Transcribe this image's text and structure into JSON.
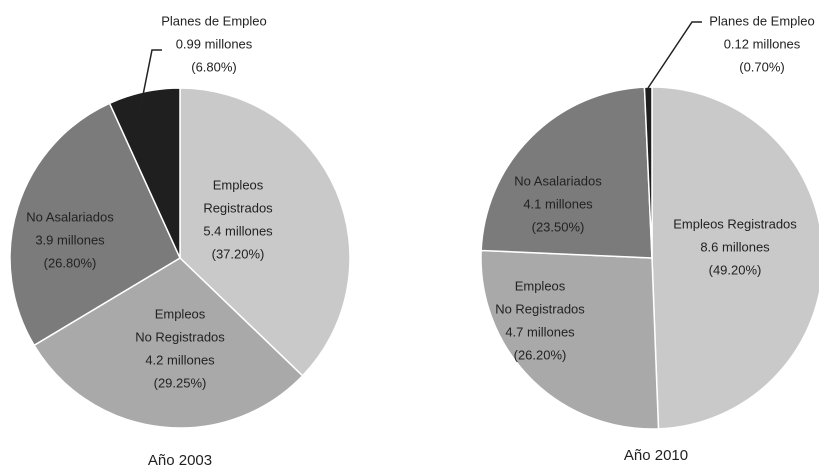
{
  "chart_data": [
    {
      "type": "pie",
      "title": "Año 2003",
      "categories": [
        [
          "Empleos",
          "Registrados"
        ],
        [
          "Empleos",
          "No Registrados"
        ],
        [
          "No Asalariados"
        ],
        [
          "Planes de Empleo"
        ]
      ],
      "amount_labels": [
        "5.4 millones",
        "4.2 millones",
        "3.9 millones",
        "0.99 millones"
      ],
      "values": [
        37.2,
        29.25,
        26.8,
        6.8
      ],
      "value_labels": [
        "(37.20%)",
        "(29.25%)",
        "(26.80%)",
        "(6.80%)"
      ],
      "colors": [
        "#c9c9c9",
        "#a9a9a9",
        "#7b7b7b",
        "#1f1f1f"
      ]
    },
    {
      "type": "pie",
      "title": "Año 2010",
      "categories": [
        [
          "Empleos Registrados"
        ],
        [
          "Empleos",
          "No Registrados"
        ],
        [
          "No Asalariados"
        ],
        [
          "Planes de Empleo"
        ]
      ],
      "amount_labels": [
        "8.6 millones",
        "4.7 millones",
        "4.1 millones",
        "0.12 millones"
      ],
      "values": [
        49.2,
        26.2,
        23.5,
        0.7
      ],
      "value_labels": [
        "(49.20%)",
        "(26.20%)",
        "(23.50%)",
        "(0.70%)"
      ],
      "colors": [
        "#c9c9c9",
        "#a9a9a9",
        "#7b7b7b",
        "#1f1f1f"
      ]
    }
  ]
}
